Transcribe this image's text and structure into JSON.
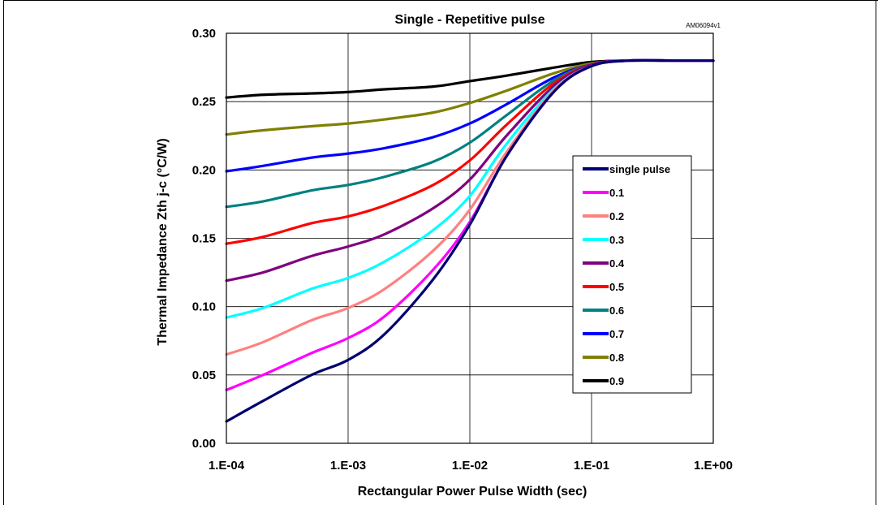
{
  "chart_data": {
    "type": "line",
    "title": "Single - Repetitive pulse",
    "doc_code": "AM06094v1",
    "xlabel": "Rectangular Power Pulse Width (sec)",
    "ylabel": "Thermal Impedance Zth j-c (°C/W)",
    "x_scale": "log",
    "xlim": [
      0.0001,
      1
    ],
    "ylim": [
      0,
      0.3
    ],
    "grid": true,
    "legend_position": "right",
    "x_ticks": [
      {
        "value": 0.0001,
        "label": "1.E-04"
      },
      {
        "value": 0.001,
        "label": "1.E-03"
      },
      {
        "value": 0.01,
        "label": "1.E-02"
      },
      {
        "value": 0.1,
        "label": "1.E-01"
      },
      {
        "value": 1,
        "label": "1.E+00"
      }
    ],
    "y_ticks": [
      {
        "value": 0.0,
        "label": "0.00"
      },
      {
        "value": 0.05,
        "label": "0.05"
      },
      {
        "value": 0.1,
        "label": "0.10"
      },
      {
        "value": 0.15,
        "label": "0.15"
      },
      {
        "value": 0.2,
        "label": "0.20"
      },
      {
        "value": 0.25,
        "label": "0.25"
      },
      {
        "value": 0.3,
        "label": "0.30"
      }
    ],
    "x": [
      0.0001,
      0.0002,
      0.0005,
      0.001,
      0.002,
      0.005,
      0.01,
      0.02,
      0.05,
      0.1,
      0.2,
      0.5,
      1
    ],
    "series": [
      {
        "name": "single pulse",
        "color": "#000070",
        "values": [
          0.016,
          0.031,
          0.05,
          0.061,
          0.08,
          0.12,
          0.16,
          0.21,
          0.258,
          0.276,
          0.28,
          0.28,
          0.28
        ]
      },
      {
        "name": "0.1",
        "color": "#ff00ff",
        "values": [
          0.039,
          0.05,
          0.066,
          0.077,
          0.093,
          0.127,
          0.162,
          0.21,
          0.258,
          0.276,
          0.28,
          0.28,
          0.28
        ]
      },
      {
        "name": "0.2",
        "color": "#ff8080",
        "values": [
          0.065,
          0.074,
          0.09,
          0.099,
          0.113,
          0.141,
          0.171,
          0.213,
          0.259,
          0.276,
          0.28,
          0.28,
          0.28
        ]
      },
      {
        "name": "0.3",
        "color": "#00ffff",
        "values": [
          0.092,
          0.099,
          0.113,
          0.121,
          0.133,
          0.156,
          0.181,
          0.219,
          0.26,
          0.276,
          0.28,
          0.28,
          0.28
        ]
      },
      {
        "name": "0.4",
        "color": "#800080",
        "values": [
          0.119,
          0.125,
          0.137,
          0.144,
          0.153,
          0.172,
          0.193,
          0.225,
          0.262,
          0.277,
          0.28,
          0.28,
          0.28
        ]
      },
      {
        "name": "0.5",
        "color": "#ff0000",
        "values": [
          0.146,
          0.151,
          0.161,
          0.166,
          0.174,
          0.189,
          0.207,
          0.233,
          0.264,
          0.277,
          0.28,
          0.28,
          0.28
        ]
      },
      {
        "name": "0.6",
        "color": "#008080",
        "values": [
          0.173,
          0.177,
          0.185,
          0.189,
          0.195,
          0.206,
          0.22,
          0.24,
          0.266,
          0.277,
          0.28,
          0.28,
          0.28
        ]
      },
      {
        "name": "0.7",
        "color": "#0000ff",
        "values": [
          0.199,
          0.203,
          0.209,
          0.212,
          0.216,
          0.224,
          0.234,
          0.248,
          0.268,
          0.277,
          0.28,
          0.28,
          0.28
        ]
      },
      {
        "name": "0.8",
        "color": "#808000",
        "values": [
          0.226,
          0.229,
          0.232,
          0.234,
          0.237,
          0.242,
          0.249,
          0.258,
          0.271,
          0.278,
          0.28,
          0.28,
          0.28
        ]
      },
      {
        "name": "0.9",
        "color": "#000000",
        "values": [
          0.253,
          0.255,
          0.256,
          0.257,
          0.259,
          0.261,
          0.265,
          0.269,
          0.275,
          0.279,
          0.28,
          0.28,
          0.28
        ]
      }
    ]
  }
}
